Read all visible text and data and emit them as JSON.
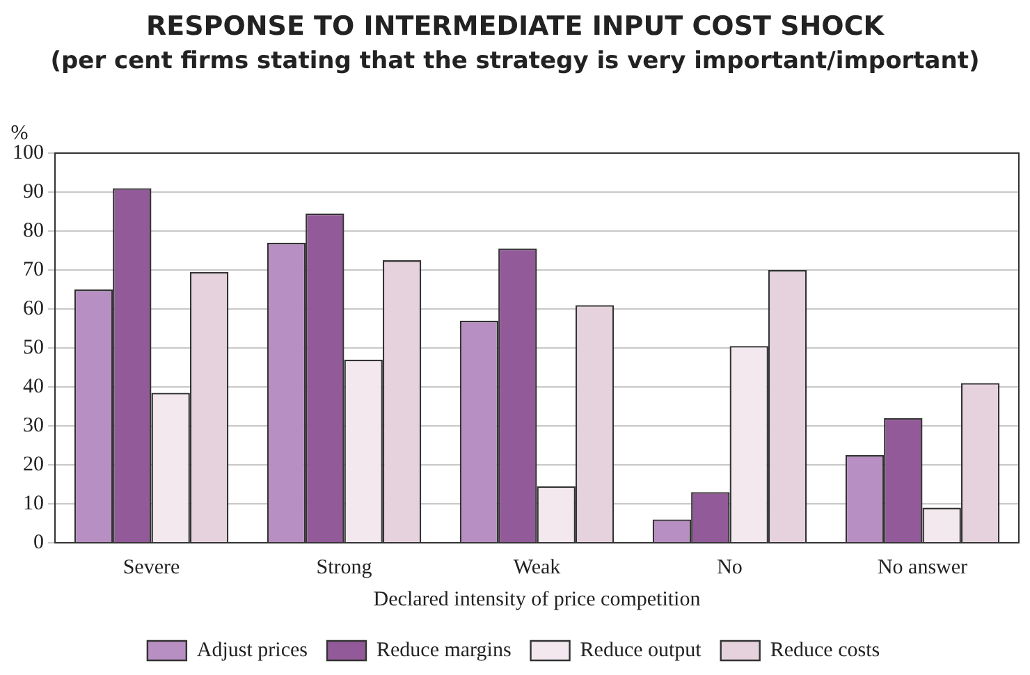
{
  "chart_data": {
    "type": "bar",
    "title": "RESPONSE TO INTERMEDIATE INPUT COST SHOCK",
    "subtitle": "(per cent firms stating that the strategy is very important/important)",
    "xlabel": "Declared intensity of price competition",
    "ylabel": "%",
    "categories": [
      "Severe",
      "Strong",
      "Weak",
      "No",
      "No answer"
    ],
    "series": [
      {
        "name": "Adjust prices",
        "color": "#b88fc2",
        "values": [
          65,
          77,
          57,
          6,
          22.5
        ]
      },
      {
        "name": "Reduce margins",
        "color": "#935a99",
        "values": [
          91,
          84.5,
          75.5,
          13,
          32
        ]
      },
      {
        "name": "Reduce output",
        "color": "#f2e8ee",
        "values": [
          38.5,
          47,
          14.5,
          50.5,
          9
        ]
      },
      {
        "name": "Reduce costs",
        "color": "#e6d2dc",
        "values": [
          69.5,
          72.5,
          61,
          70,
          41
        ]
      }
    ],
    "ylim": [
      0,
      100
    ],
    "yticks": [
      0,
      10,
      20,
      30,
      40,
      50,
      60,
      70,
      80,
      90,
      100
    ],
    "grid": "y",
    "legend": "bottom"
  }
}
